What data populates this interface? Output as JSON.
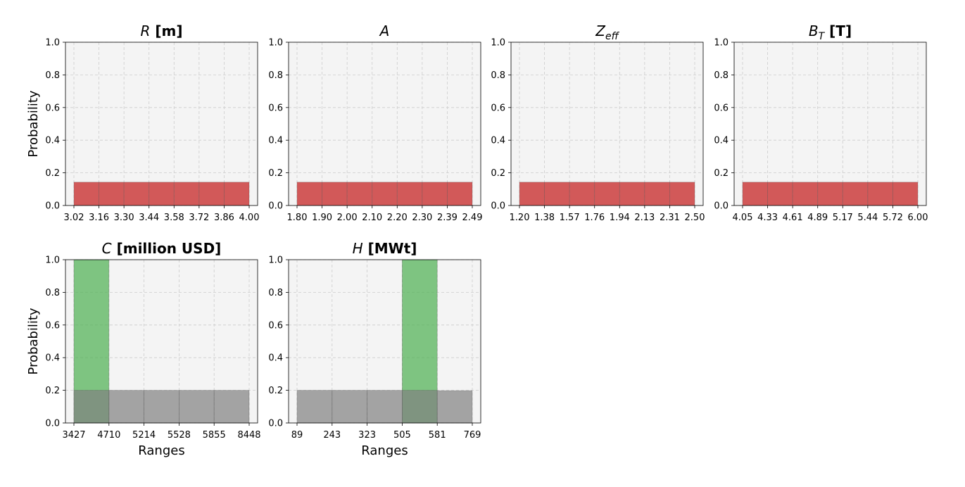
{
  "chart_data": [
    {
      "type": "bar",
      "title": {
        "symbol": "R",
        "sub": "",
        "suffix": " [m]"
      },
      "xlabel": "",
      "ylabel": "Probability",
      "ylim": [
        0,
        1.0
      ],
      "yticks": [
        "0.0",
        "0.2",
        "0.4",
        "0.6",
        "0.8",
        "1.0"
      ],
      "xticks": [
        "3.02",
        "3.16",
        "3.30",
        "3.44",
        "3.58",
        "3.72",
        "3.86",
        "4.00"
      ],
      "grid": true,
      "series": [
        {
          "color": "#d05050",
          "values": [
            0.143,
            0.143,
            0.143,
            0.143,
            0.143,
            0.143,
            0.143
          ]
        }
      ]
    },
    {
      "type": "bar",
      "title": {
        "symbol": "A",
        "sub": "",
        "suffix": ""
      },
      "xlabel": "",
      "ylabel": "",
      "ylim": [
        0,
        1.0
      ],
      "yticks": [
        "0.0",
        "0.2",
        "0.4",
        "0.6",
        "0.8",
        "1.0"
      ],
      "xticks": [
        "1.80",
        "1.90",
        "2.00",
        "2.10",
        "2.20",
        "2.30",
        "2.39",
        "2.49"
      ],
      "grid": true,
      "series": [
        {
          "color": "#d05050",
          "values": [
            0.143,
            0.143,
            0.143,
            0.143,
            0.143,
            0.143,
            0.143
          ]
        }
      ]
    },
    {
      "type": "bar",
      "title": {
        "symbol": "Z",
        "sub": "eff",
        "suffix": ""
      },
      "xlabel": "",
      "ylabel": "",
      "ylim": [
        0,
        1.0
      ],
      "yticks": [
        "0.0",
        "0.2",
        "0.4",
        "0.6",
        "0.8",
        "1.0"
      ],
      "xticks": [
        "1.20",
        "1.38",
        "1.57",
        "1.76",
        "1.94",
        "2.13",
        "2.31",
        "2.50"
      ],
      "grid": true,
      "series": [
        {
          "color": "#d05050",
          "values": [
            0.143,
            0.143,
            0.143,
            0.143,
            0.143,
            0.143,
            0.143
          ]
        }
      ]
    },
    {
      "type": "bar",
      "title": {
        "symbol": "B",
        "sub": "T",
        "suffix": " [T]"
      },
      "xlabel": "",
      "ylabel": "",
      "ylim": [
        0,
        1.0
      ],
      "yticks": [
        "0.0",
        "0.2",
        "0.4",
        "0.6",
        "0.8",
        "1.0"
      ],
      "xticks": [
        "4.05",
        "4.33",
        "4.61",
        "4.89",
        "5.17",
        "5.44",
        "5.72",
        "6.00"
      ],
      "grid": true,
      "series": [
        {
          "color": "#d05050",
          "values": [
            0.143,
            0.143,
            0.143,
            0.143,
            0.143,
            0.143,
            0.143
          ]
        }
      ]
    },
    {
      "type": "bar",
      "title": {
        "symbol": "C",
        "sub": "",
        "suffix": " [million USD]"
      },
      "xlabel": "Ranges",
      "ylabel": "Probability",
      "ylim": [
        0,
        1.0
      ],
      "yticks": [
        "0.0",
        "0.2",
        "0.4",
        "0.6",
        "0.8",
        "1.0"
      ],
      "xticks": [
        "3427",
        "4710",
        "5214",
        "5528",
        "5855",
        "8448"
      ],
      "grid": true,
      "series": [
        {
          "color": "#4caf50",
          "values": [
            1.0,
            0,
            0,
            0,
            0
          ]
        },
        {
          "color": "#808080",
          "values": [
            0.2,
            0.2,
            0.2,
            0.2,
            0.2
          ]
        }
      ]
    },
    {
      "type": "bar",
      "title": {
        "symbol": "H",
        "sub": "",
        "suffix": " [MWt]"
      },
      "xlabel": "Ranges",
      "ylabel": "",
      "ylim": [
        0,
        1.0
      ],
      "yticks": [
        "0.0",
        "0.2",
        "0.4",
        "0.6",
        "0.8",
        "1.0"
      ],
      "xticks": [
        "89",
        "243",
        "323",
        "505",
        "581",
        "769"
      ],
      "grid": true,
      "series": [
        {
          "color": "#4caf50",
          "values": [
            0,
            0,
            0,
            1.0,
            0
          ]
        },
        {
          "color": "#808080",
          "values": [
            0.2,
            0.2,
            0.2,
            0.2,
            0.198
          ]
        }
      ]
    }
  ]
}
